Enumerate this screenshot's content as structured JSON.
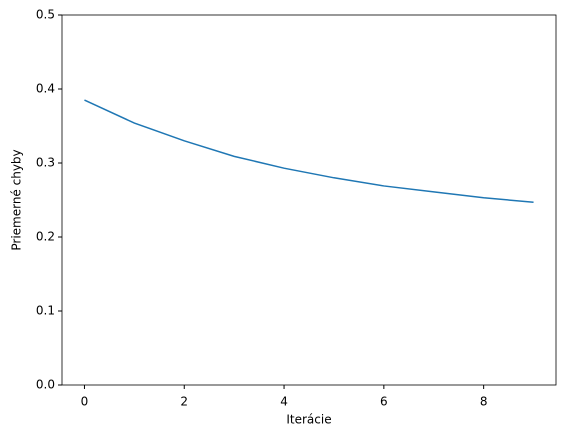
{
  "chart_data": {
    "type": "line",
    "x_label": "Iterácie",
    "y_label": "Priemerné chyby",
    "x": [
      0,
      1,
      2,
      3,
      4,
      5,
      6,
      7,
      8,
      9
    ],
    "series": [
      {
        "color": "#1f77b4",
        "values": [
          0.385,
          0.354,
          0.33,
          0.309,
          0.293,
          0.28,
          0.269,
          0.261,
          0.253,
          0.247
        ]
      }
    ],
    "xlim": [
      -0.45,
      9.45
    ],
    "xticks": [
      0,
      2,
      4,
      6,
      8
    ],
    "ylim": [
      0,
      0.5
    ],
    "yticks": [
      {
        "value": 0,
        "label": "0.0"
      },
      0.1,
      0.2,
      0.3,
      0.4,
      0.5
    ]
  }
}
